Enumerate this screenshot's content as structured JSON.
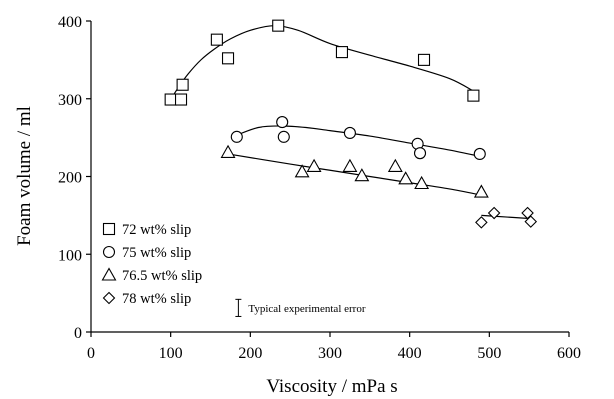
{
  "chart_data": {
    "type": "scatter",
    "title": "",
    "xlabel": "Viscosity / mPa s",
    "ylabel": "Foam volume / ml",
    "xlim": [
      0,
      600
    ],
    "ylim": [
      0,
      400
    ],
    "xticks": [
      0,
      100,
      200,
      300,
      400,
      500,
      600
    ],
    "yticks": [
      0,
      100,
      200,
      300,
      400
    ],
    "grid": false,
    "legend_position": "bottom-left",
    "series": [
      {
        "name": "72 wt% slip",
        "marker": "square",
        "points": [
          [
            100,
            299
          ],
          [
            113,
            299
          ],
          [
            115,
            318
          ],
          [
            158,
            376
          ],
          [
            172,
            352
          ],
          [
            235,
            394
          ],
          [
            315,
            360
          ],
          [
            418,
            350
          ],
          [
            480,
            304
          ]
        ],
        "fit": [
          [
            100,
            299
          ],
          [
            110,
            315
          ],
          [
            122,
            332
          ],
          [
            138,
            350
          ],
          [
            155,
            364
          ],
          [
            175,
            377
          ],
          [
            200,
            388
          ],
          [
            230,
            394
          ],
          [
            260,
            388
          ],
          [
            300,
            371
          ],
          [
            350,
            356
          ],
          [
            400,
            342
          ],
          [
            450,
            326
          ],
          [
            480,
            310
          ]
        ]
      },
      {
        "name": "75 wt% slip",
        "marker": "circle",
        "points": [
          [
            183,
            251
          ],
          [
            240,
            270
          ],
          [
            242,
            251
          ],
          [
            325,
            256
          ],
          [
            410,
            242
          ],
          [
            413,
            230
          ],
          [
            488,
            229
          ]
        ],
        "fit": [
          [
            180,
            252
          ],
          [
            210,
            263
          ],
          [
            240,
            265
          ],
          [
            270,
            263
          ],
          [
            300,
            259
          ],
          [
            350,
            252
          ],
          [
            400,
            243
          ],
          [
            450,
            234
          ],
          [
            488,
            226
          ]
        ]
      },
      {
        "name": "76.5 wt% slip",
        "marker": "triangle",
        "points": [
          [
            172,
            231
          ],
          [
            265,
            206
          ],
          [
            280,
            213
          ],
          [
            325,
            213
          ],
          [
            340,
            201
          ],
          [
            382,
            213
          ],
          [
            395,
            197
          ],
          [
            415,
            191
          ],
          [
            490,
            180
          ]
        ],
        "fit": [
          [
            172,
            229
          ],
          [
            250,
            216
          ],
          [
            300,
            208
          ],
          [
            350,
            200
          ],
          [
            400,
            192
          ],
          [
            450,
            184
          ],
          [
            490,
            176
          ]
        ]
      },
      {
        "name": "78 wt% slip",
        "marker": "diamond",
        "points": [
          [
            490,
            141
          ],
          [
            506,
            153
          ],
          [
            548,
            153
          ],
          [
            552,
            142
          ]
        ],
        "fit": [
          [
            490,
            150
          ],
          [
            520,
            148
          ],
          [
            550,
            146
          ]
        ]
      }
    ],
    "annotations": [
      {
        "text": "Typical experimental error",
        "kind": "error-bar",
        "x": 185,
        "y_range": [
          20,
          42
        ]
      }
    ]
  }
}
